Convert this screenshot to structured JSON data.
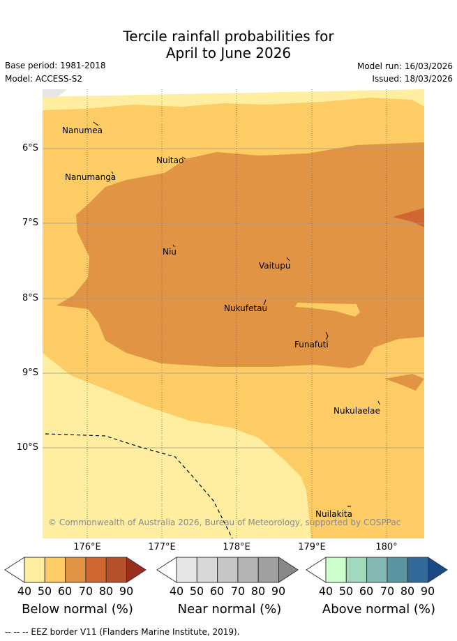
{
  "title": {
    "line1": "Tercile rainfall probabilities for",
    "line2": "April to June 2026"
  },
  "meta": {
    "base_period": "Base period: 1981-2018",
    "model": "Model: ACCESS-S2",
    "model_run": "Model run: 16/03/2026",
    "issued": "Issued: 18/03/2026"
  },
  "map": {
    "lat_labels": [
      "6°S",
      "7°S",
      "8°S",
      "9°S",
      "10°S"
    ],
    "lon_labels": [
      "176°E",
      "177°E",
      "178°E",
      "179°E",
      "180°"
    ],
    "places": [
      "Nanumea",
      "Nuitao",
      "Nanumanga",
      "Niu",
      "Vaitupu",
      "Nukufetau",
      "Funafuti",
      "Nukulaelae",
      "Nuilakita"
    ],
    "copyright": "© Commonwealth of Australia 2026, Bureau of Meteorology, supported by COSPPac"
  },
  "legends": [
    {
      "title": "Below normal (%)",
      "ticks": [
        "40",
        "50",
        "60",
        "70",
        "80",
        "90"
      ],
      "colors": [
        "#ffeea0",
        "#fdcc64",
        "#e09444",
        "#d06630",
        "#b5502a",
        "#9a2e1e"
      ]
    },
    {
      "title": "Near normal (%)",
      "ticks": [
        "40",
        "50",
        "60",
        "70",
        "80",
        "90"
      ],
      "colors": [
        "#e6e6e6",
        "#d8d8d8",
        "#c6c6c6",
        "#b4b4b4",
        "#a0a0a0",
        "#888888"
      ]
    },
    {
      "title": "Above normal (%)",
      "ticks": [
        "40",
        "50",
        "60",
        "70",
        "80",
        "90"
      ],
      "colors": [
        "#ccffcc",
        "#a2d8bc",
        "#84b8b2",
        "#5b93a0",
        "#33689a",
        "#1a4a86"
      ]
    }
  ],
  "footer": {
    "eez_note": "--  --  -- EEZ border V11 (Flanders Marine Institute, 2019)."
  }
}
